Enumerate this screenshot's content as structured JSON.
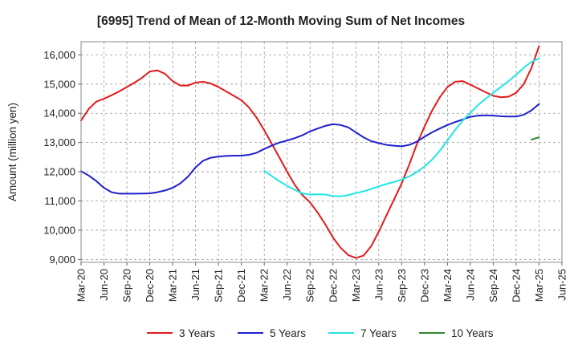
{
  "chart_data": {
    "type": "line",
    "title": "[6995]  Trend of Mean of 12-Month Moving Sum of Net Incomes",
    "xlabel": "",
    "ylabel": "Amount (million yen)",
    "ylim": [
      8900,
      16450
    ],
    "yticks": [
      9000,
      10000,
      11000,
      12000,
      13000,
      14000,
      15000,
      16000
    ],
    "ytick_labels": [
      "9,000",
      "10,000",
      "11,000",
      "12,000",
      "13,000",
      "14,000",
      "15,000",
      "16,000"
    ],
    "xticks": [
      {
        "month": "2020-03",
        "label": "Mar-20"
      },
      {
        "month": "2020-06",
        "label": "Jun-20"
      },
      {
        "month": "2020-09",
        "label": "Sep-20"
      },
      {
        "month": "2020-12",
        "label": "Dec-20"
      },
      {
        "month": "2021-03",
        "label": "Mar-21"
      },
      {
        "month": "2021-06",
        "label": "Jun-21"
      },
      {
        "month": "2021-09",
        "label": "Sep-21"
      },
      {
        "month": "2021-12",
        "label": "Dec-21"
      },
      {
        "month": "2022-03",
        "label": "Mar-22"
      },
      {
        "month": "2022-06",
        "label": "Jun-22"
      },
      {
        "month": "2022-09",
        "label": "Sep-22"
      },
      {
        "month": "2022-12",
        "label": "Dec-22"
      },
      {
        "month": "2023-03",
        "label": "Mar-23"
      },
      {
        "month": "2023-06",
        "label": "Jun-23"
      },
      {
        "month": "2023-09",
        "label": "Sep-23"
      },
      {
        "month": "2023-12",
        "label": "Dec-23"
      },
      {
        "month": "2024-03",
        "label": "Mar-24"
      },
      {
        "month": "2024-06",
        "label": "Jun-24"
      },
      {
        "month": "2024-09",
        "label": "Sep-24"
      },
      {
        "month": "2024-12",
        "label": "Dec-24"
      },
      {
        "month": "2025-03",
        "label": "Mar-25"
      },
      {
        "month": "2025-06",
        "label": "Jun-25"
      }
    ],
    "xlim": [
      "2020-03",
      "2025-06"
    ],
    "grid": true,
    "legend_position": "bottom",
    "series": [
      {
        "name": "3 Years",
        "color": "#e31a1c",
        "points": [
          [
            "2020-03",
            13750
          ],
          [
            "2020-04",
            14150
          ],
          [
            "2020-05",
            14400
          ],
          [
            "2020-06",
            14500
          ],
          [
            "2020-07",
            14620
          ],
          [
            "2020-08",
            14750
          ],
          [
            "2020-09",
            14900
          ],
          [
            "2020-10",
            15050
          ],
          [
            "2020-11",
            15220
          ],
          [
            "2020-12",
            15430
          ],
          [
            "2021-01",
            15470
          ],
          [
            "2021-02",
            15350
          ],
          [
            "2021-03",
            15100
          ],
          [
            "2021-04",
            14950
          ],
          [
            "2021-05",
            14950
          ],
          [
            "2021-06",
            15050
          ],
          [
            "2021-07",
            15080
          ],
          [
            "2021-08",
            15020
          ],
          [
            "2021-09",
            14900
          ],
          [
            "2021-10",
            14750
          ],
          [
            "2021-11",
            14600
          ],
          [
            "2021-12",
            14450
          ],
          [
            "2022-01",
            14200
          ],
          [
            "2022-02",
            13850
          ],
          [
            "2022-03",
            13420
          ],
          [
            "2022-04",
            12950
          ],
          [
            "2022-05",
            12480
          ],
          [
            "2022-06",
            12000
          ],
          [
            "2022-07",
            11550
          ],
          [
            "2022-08",
            11200
          ],
          [
            "2022-09",
            10950
          ],
          [
            "2022-10",
            10600
          ],
          [
            "2022-11",
            10200
          ],
          [
            "2022-12",
            9750
          ],
          [
            "2023-01",
            9400
          ],
          [
            "2023-02",
            9150
          ],
          [
            "2023-03",
            9050
          ],
          [
            "2023-04",
            9130
          ],
          [
            "2023-05",
            9450
          ],
          [
            "2023-06",
            9950
          ],
          [
            "2023-07",
            10500
          ],
          [
            "2023-08",
            11050
          ],
          [
            "2023-09",
            11600
          ],
          [
            "2023-10",
            12250
          ],
          [
            "2023-11",
            12950
          ],
          [
            "2023-12",
            13550
          ],
          [
            "2024-01",
            14100
          ],
          [
            "2024-02",
            14550
          ],
          [
            "2024-03",
            14900
          ],
          [
            "2024-04",
            15080
          ],
          [
            "2024-05",
            15100
          ],
          [
            "2024-06",
            14980
          ],
          [
            "2024-07",
            14850
          ],
          [
            "2024-08",
            14720
          ],
          [
            "2024-09",
            14600
          ],
          [
            "2024-10",
            14550
          ],
          [
            "2024-11",
            14570
          ],
          [
            "2024-12",
            14700
          ],
          [
            "2025-01",
            15000
          ],
          [
            "2025-02",
            15550
          ],
          [
            "2025-03",
            16300
          ]
        ]
      },
      {
        "name": "5 Years",
        "color": "#1f1fcc",
        "points": [
          [
            "2020-03",
            12020
          ],
          [
            "2020-04",
            11870
          ],
          [
            "2020-05",
            11680
          ],
          [
            "2020-06",
            11450
          ],
          [
            "2020-07",
            11300
          ],
          [
            "2020-08",
            11250
          ],
          [
            "2020-09",
            11250
          ],
          [
            "2020-10",
            11250
          ],
          [
            "2020-11",
            11255
          ],
          [
            "2020-12",
            11260
          ],
          [
            "2021-01",
            11300
          ],
          [
            "2021-02",
            11360
          ],
          [
            "2021-03",
            11450
          ],
          [
            "2021-04",
            11600
          ],
          [
            "2021-05",
            11830
          ],
          [
            "2021-06",
            12150
          ],
          [
            "2021-07",
            12380
          ],
          [
            "2021-08",
            12480
          ],
          [
            "2021-09",
            12520
          ],
          [
            "2021-10",
            12540
          ],
          [
            "2021-11",
            12550
          ],
          [
            "2021-12",
            12550
          ],
          [
            "2022-01",
            12580
          ],
          [
            "2022-02",
            12650
          ],
          [
            "2022-03",
            12780
          ],
          [
            "2022-04",
            12900
          ],
          [
            "2022-05",
            13000
          ],
          [
            "2022-06",
            13070
          ],
          [
            "2022-07",
            13150
          ],
          [
            "2022-08",
            13250
          ],
          [
            "2022-09",
            13380
          ],
          [
            "2022-10",
            13480
          ],
          [
            "2022-11",
            13570
          ],
          [
            "2022-12",
            13630
          ],
          [
            "2023-01",
            13600
          ],
          [
            "2023-02",
            13520
          ],
          [
            "2023-03",
            13350
          ],
          [
            "2023-04",
            13180
          ],
          [
            "2023-05",
            13050
          ],
          [
            "2023-06",
            12980
          ],
          [
            "2023-07",
            12920
          ],
          [
            "2023-08",
            12890
          ],
          [
            "2023-09",
            12870
          ],
          [
            "2023-10",
            12920
          ],
          [
            "2023-11",
            13030
          ],
          [
            "2023-12",
            13200
          ],
          [
            "2024-01",
            13350
          ],
          [
            "2024-02",
            13480
          ],
          [
            "2024-03",
            13600
          ],
          [
            "2024-04",
            13700
          ],
          [
            "2024-05",
            13790
          ],
          [
            "2024-06",
            13880
          ],
          [
            "2024-07",
            13920
          ],
          [
            "2024-08",
            13930
          ],
          [
            "2024-09",
            13920
          ],
          [
            "2024-10",
            13900
          ],
          [
            "2024-11",
            13890
          ],
          [
            "2024-12",
            13890
          ],
          [
            "2025-01",
            13950
          ],
          [
            "2025-02",
            14100
          ],
          [
            "2025-03",
            14320
          ]
        ]
      },
      {
        "name": "7 Years",
        "color": "#22e5e5",
        "points": [
          [
            "2022-03",
            12030
          ],
          [
            "2022-04",
            11850
          ],
          [
            "2022-05",
            11670
          ],
          [
            "2022-06",
            11520
          ],
          [
            "2022-07",
            11380
          ],
          [
            "2022-08",
            11260
          ],
          [
            "2022-09",
            11220
          ],
          [
            "2022-10",
            11230
          ],
          [
            "2022-11",
            11220
          ],
          [
            "2022-12",
            11170
          ],
          [
            "2023-01",
            11160
          ],
          [
            "2023-02",
            11200
          ],
          [
            "2023-03",
            11270
          ],
          [
            "2023-04",
            11330
          ],
          [
            "2023-05",
            11410
          ],
          [
            "2023-06",
            11500
          ],
          [
            "2023-07",
            11580
          ],
          [
            "2023-08",
            11650
          ],
          [
            "2023-09",
            11730
          ],
          [
            "2023-10",
            11840
          ],
          [
            "2023-11",
            11990
          ],
          [
            "2023-12",
            12180
          ],
          [
            "2024-01",
            12420
          ],
          [
            "2024-02",
            12720
          ],
          [
            "2024-03",
            13070
          ],
          [
            "2024-04",
            13430
          ],
          [
            "2024-05",
            13750
          ],
          [
            "2024-06",
            14020
          ],
          [
            "2024-07",
            14280
          ],
          [
            "2024-08",
            14500
          ],
          [
            "2024-09",
            14700
          ],
          [
            "2024-10",
            14900
          ],
          [
            "2024-11",
            15100
          ],
          [
            "2024-12",
            15320
          ],
          [
            "2025-01",
            15560
          ],
          [
            "2025-02",
            15760
          ],
          [
            "2025-03",
            15870
          ]
        ]
      },
      {
        "name": "10 Years",
        "color": "#2e8b2e",
        "points": [
          [
            "2025-02",
            13100
          ],
          [
            "2025-03",
            13180
          ]
        ]
      }
    ]
  }
}
